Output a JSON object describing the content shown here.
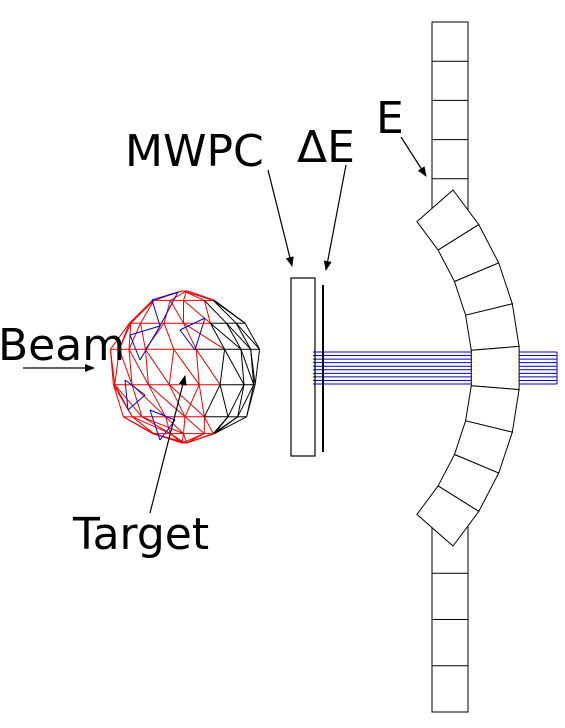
{
  "labels": {
    "beam": "Beam",
    "target": "Target",
    "mwpc": "MWPC",
    "delta_e": "ΔE",
    "e": "E"
  },
  "colors": {
    "line": "#000000",
    "beam_lines": "#0000cc",
    "mesh_red": "#ee0000",
    "mesh_blue": "#0000cc",
    "mesh_black": "#000000"
  },
  "counts": {
    "beam_line_count": 10,
    "upper_straight_cells": 5,
    "lower_straight_cells": 4,
    "arc_cells": 9
  }
}
